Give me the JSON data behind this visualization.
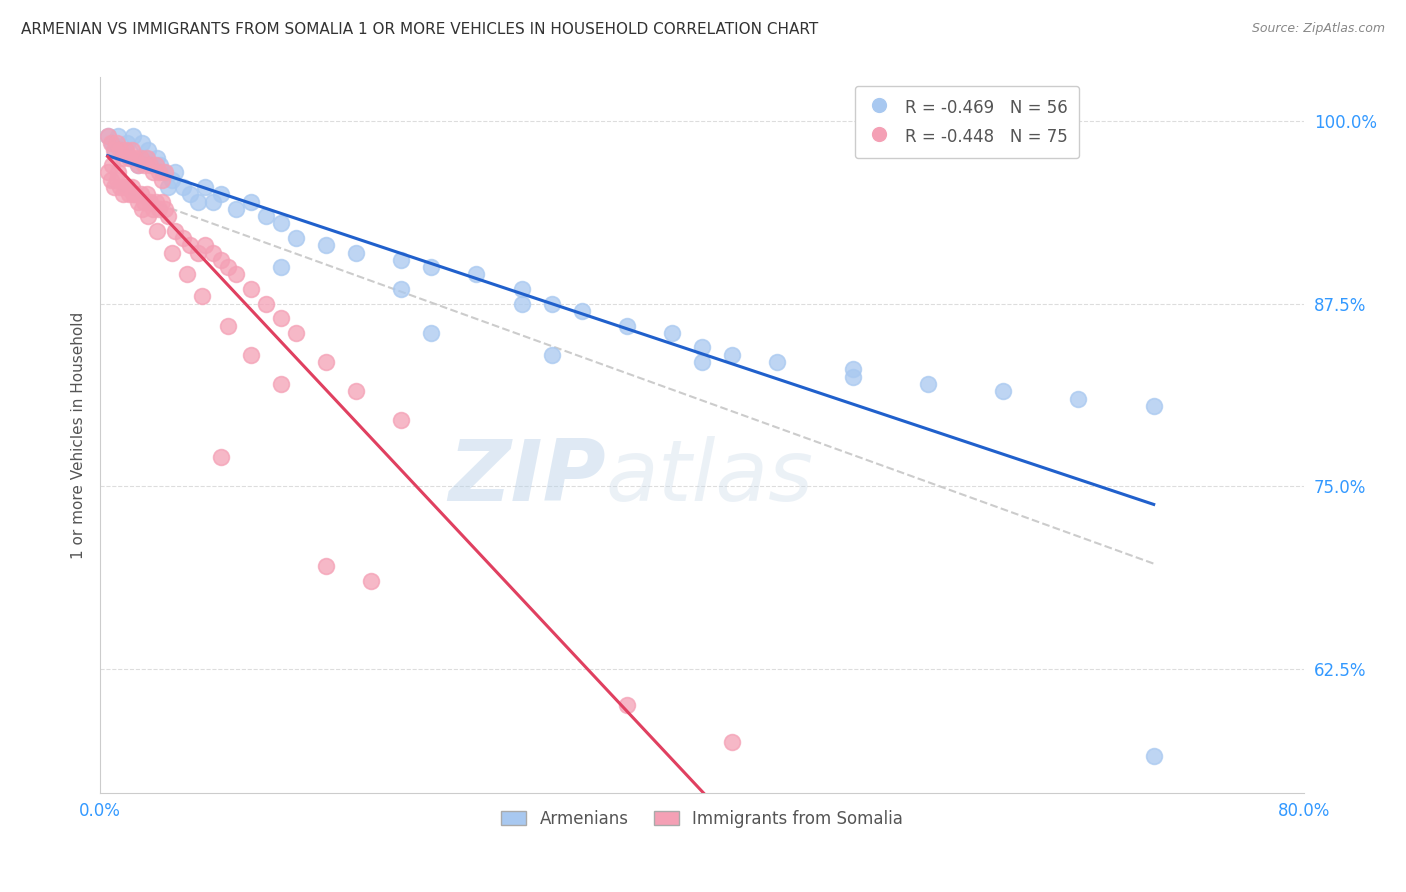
{
  "title": "ARMENIAN VS IMMIGRANTS FROM SOMALIA 1 OR MORE VEHICLES IN HOUSEHOLD CORRELATION CHART",
  "source_text": "Source: ZipAtlas.com",
  "ylabel": "1 or more Vehicles in Household",
  "watermark_zip": "ZIP",
  "watermark_atlas": "atlas",
  "xlim": [
    0.0,
    0.8
  ],
  "ylim": [
    0.54,
    1.03
  ],
  "xticks": [
    0.0,
    0.1,
    0.2,
    0.3,
    0.4,
    0.5,
    0.6,
    0.7,
    0.8
  ],
  "yticks": [
    0.625,
    0.75,
    0.875,
    1.0
  ],
  "yticklabels": [
    "62.5%",
    "75.0%",
    "87.5%",
    "100.0%"
  ],
  "blue_R": -0.469,
  "blue_N": 56,
  "pink_R": -0.448,
  "pink_N": 75,
  "blue_color": "#A8C8F0",
  "pink_color": "#F4A0B5",
  "blue_line_color": "#2060CC",
  "pink_line_color": "#E04060",
  "gray_line_color": "#CCCCCC",
  "grid_color": "#DDDDDD",
  "background_color": "#FFFFFF",
  "title_color": "#333333",
  "axis_tick_color": "#3399FF",
  "legend_label_blue": "Armenians",
  "legend_label_pink": "Immigrants from Somalia",
  "blue_points_x": [
    0.005,
    0.008,
    0.01,
    0.012,
    0.015,
    0.018,
    0.02,
    0.022,
    0.025,
    0.028,
    0.03,
    0.032,
    0.035,
    0.038,
    0.04,
    0.042,
    0.045,
    0.048,
    0.05,
    0.055,
    0.06,
    0.065,
    0.07,
    0.075,
    0.08,
    0.09,
    0.1,
    0.11,
    0.12,
    0.13,
    0.15,
    0.17,
    0.2,
    0.22,
    0.25,
    0.28,
    0.3,
    0.32,
    0.35,
    0.38,
    0.4,
    0.42,
    0.45,
    0.5,
    0.55,
    0.6,
    0.65,
    0.7,
    0.22,
    0.3,
    0.4,
    0.5,
    0.12,
    0.2,
    0.28,
    0.7
  ],
  "blue_points_y": [
    0.99,
    0.985,
    0.98,
    0.99,
    0.98,
    0.985,
    0.975,
    0.99,
    0.97,
    0.985,
    0.975,
    0.98,
    0.97,
    0.975,
    0.97,
    0.965,
    0.955,
    0.96,
    0.965,
    0.955,
    0.95,
    0.945,
    0.955,
    0.945,
    0.95,
    0.94,
    0.945,
    0.935,
    0.93,
    0.92,
    0.915,
    0.91,
    0.905,
    0.9,
    0.895,
    0.885,
    0.875,
    0.87,
    0.86,
    0.855,
    0.845,
    0.84,
    0.835,
    0.825,
    0.82,
    0.815,
    0.81,
    0.805,
    0.855,
    0.84,
    0.835,
    0.83,
    0.9,
    0.885,
    0.875,
    0.565
  ],
  "pink_points_x": [
    0.005,
    0.007,
    0.009,
    0.011,
    0.013,
    0.015,
    0.017,
    0.019,
    0.021,
    0.023,
    0.025,
    0.027,
    0.029,
    0.031,
    0.033,
    0.035,
    0.037,
    0.039,
    0.041,
    0.043,
    0.005,
    0.007,
    0.009,
    0.011,
    0.013,
    0.015,
    0.017,
    0.019,
    0.021,
    0.023,
    0.025,
    0.027,
    0.029,
    0.031,
    0.033,
    0.035,
    0.037,
    0.039,
    0.041,
    0.043,
    0.045,
    0.05,
    0.055,
    0.06,
    0.065,
    0.07,
    0.075,
    0.08,
    0.085,
    0.09,
    0.1,
    0.11,
    0.12,
    0.13,
    0.15,
    0.17,
    0.2,
    0.008,
    0.012,
    0.018,
    0.022,
    0.028,
    0.032,
    0.038,
    0.048,
    0.058,
    0.068,
    0.085,
    0.1,
    0.12,
    0.08,
    0.15,
    0.35,
    0.42,
    0.18
  ],
  "pink_points_y": [
    0.99,
    0.985,
    0.98,
    0.985,
    0.98,
    0.975,
    0.98,
    0.975,
    0.98,
    0.975,
    0.97,
    0.975,
    0.97,
    0.975,
    0.97,
    0.965,
    0.97,
    0.965,
    0.96,
    0.965,
    0.965,
    0.96,
    0.955,
    0.96,
    0.955,
    0.95,
    0.955,
    0.95,
    0.955,
    0.95,
    0.945,
    0.95,
    0.945,
    0.95,
    0.945,
    0.94,
    0.945,
    0.94,
    0.945,
    0.94,
    0.935,
    0.925,
    0.92,
    0.915,
    0.91,
    0.915,
    0.91,
    0.905,
    0.9,
    0.895,
    0.885,
    0.875,
    0.865,
    0.855,
    0.835,
    0.815,
    0.795,
    0.97,
    0.965,
    0.955,
    0.95,
    0.94,
    0.935,
    0.925,
    0.91,
    0.895,
    0.88,
    0.86,
    0.84,
    0.82,
    0.77,
    0.695,
    0.6,
    0.575,
    0.685
  ]
}
